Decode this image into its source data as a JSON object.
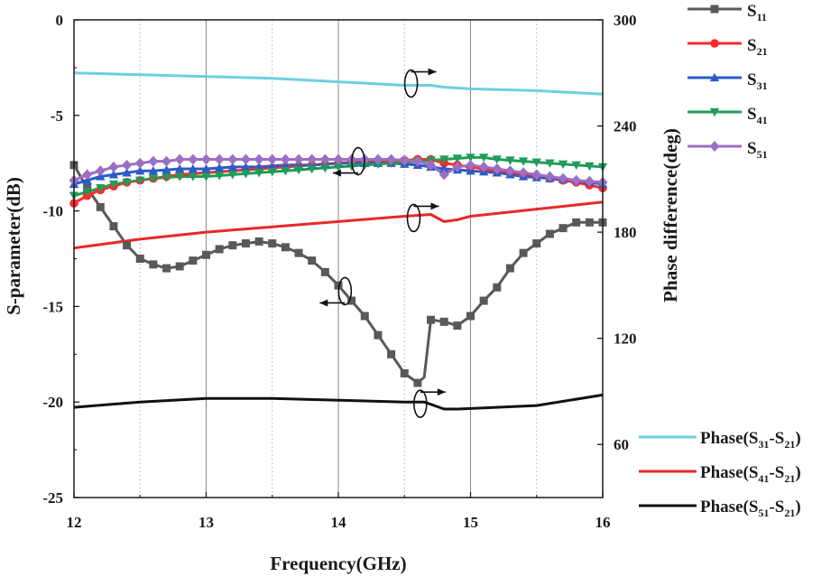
{
  "chart_data": {
    "type": "line",
    "x_axis": {
      "label": "Frequency(GHz)",
      "range": [
        12,
        16
      ],
      "ticks": [
        "12",
        "13",
        "14",
        "15",
        "16"
      ]
    },
    "y_left": {
      "label": "S-parameter(dB)",
      "range": [
        -25,
        0
      ],
      "ticks": [
        "0",
        "-5",
        "-10",
        "-15",
        "-20",
        "-25"
      ]
    },
    "y_right": {
      "label": "Phase difference(deg)",
      "range": [
        30,
        300
      ],
      "ticks": [
        "300",
        "240",
        "180",
        "120",
        "60"
      ]
    },
    "series": [
      {
        "name": "S11",
        "main": "S",
        "sub": "11",
        "axis": "left",
        "color": "#595959",
        "marker": "square",
        "points": [
          [
            12.0,
            -7.6
          ],
          [
            12.1,
            -8.8
          ],
          [
            12.2,
            -9.8
          ],
          [
            12.3,
            -10.8
          ],
          [
            12.4,
            -11.8
          ],
          [
            12.5,
            -12.5
          ],
          [
            12.6,
            -12.8
          ],
          [
            12.7,
            -13.0
          ],
          [
            12.8,
            -12.9
          ],
          [
            12.9,
            -12.6
          ],
          [
            13.0,
            -12.3
          ],
          [
            13.1,
            -12.0
          ],
          [
            13.2,
            -11.8
          ],
          [
            13.3,
            -11.7
          ],
          [
            13.4,
            -11.6
          ],
          [
            13.5,
            -11.7
          ],
          [
            13.6,
            -11.9
          ],
          [
            13.7,
            -12.2
          ],
          [
            13.8,
            -12.6
          ],
          [
            13.9,
            -13.2
          ],
          [
            14.0,
            -13.9
          ],
          [
            14.1,
            -14.7
          ],
          [
            14.2,
            -15.5
          ],
          [
            14.3,
            -16.5
          ],
          [
            14.4,
            -17.5
          ],
          [
            14.5,
            -18.5
          ],
          [
            14.6,
            -19.0
          ],
          [
            14.65,
            -18.7
          ],
          [
            14.7,
            -15.7
          ],
          [
            14.8,
            -15.8
          ],
          [
            14.9,
            -16.0
          ],
          [
            15.0,
            -15.5
          ],
          [
            15.1,
            -14.7
          ],
          [
            15.2,
            -14.0
          ],
          [
            15.3,
            -13.0
          ],
          [
            15.4,
            -12.2
          ],
          [
            15.5,
            -11.7
          ],
          [
            15.6,
            -11.2
          ],
          [
            15.7,
            -10.9
          ],
          [
            15.8,
            -10.6
          ],
          [
            15.9,
            -10.6
          ],
          [
            16.0,
            -10.6
          ]
        ]
      },
      {
        "name": "S21",
        "main": "S",
        "sub": "21",
        "axis": "left",
        "color": "#ff2a2a",
        "marker": "circle",
        "points": [
          [
            12.0,
            -9.6
          ],
          [
            12.1,
            -9.2
          ],
          [
            12.2,
            -8.9
          ],
          [
            12.3,
            -8.7
          ],
          [
            12.4,
            -8.5
          ],
          [
            12.5,
            -8.4
          ],
          [
            12.6,
            -8.3
          ],
          [
            12.7,
            -8.2
          ],
          [
            12.8,
            -8.1
          ],
          [
            13.0,
            -8.0
          ],
          [
            13.2,
            -7.9
          ],
          [
            13.4,
            -7.8
          ],
          [
            13.6,
            -7.7
          ],
          [
            13.8,
            -7.6
          ],
          [
            14.0,
            -7.5
          ],
          [
            14.2,
            -7.4
          ],
          [
            14.4,
            -7.4
          ],
          [
            14.6,
            -7.3
          ],
          [
            14.7,
            -7.3
          ],
          [
            14.8,
            -7.5
          ],
          [
            15.0,
            -7.7
          ],
          [
            15.2,
            -7.9
          ],
          [
            15.4,
            -8.1
          ],
          [
            15.6,
            -8.3
          ],
          [
            15.8,
            -8.5
          ],
          [
            16.0,
            -8.8
          ]
        ]
      },
      {
        "name": "S31",
        "main": "S",
        "sub": "31",
        "axis": "left",
        "color": "#2b5bc8",
        "marker": "triangle-up",
        "points": [
          [
            12.0,
            -8.6
          ],
          [
            12.1,
            -8.4
          ],
          [
            12.2,
            -8.2
          ],
          [
            12.3,
            -8.1
          ],
          [
            12.4,
            -8.0
          ],
          [
            12.5,
            -7.9
          ],
          [
            12.6,
            -7.9
          ],
          [
            12.8,
            -7.8
          ],
          [
            13.0,
            -7.8
          ],
          [
            13.2,
            -7.7
          ],
          [
            13.4,
            -7.7
          ],
          [
            13.6,
            -7.6
          ],
          [
            13.8,
            -7.6
          ],
          [
            14.0,
            -7.5
          ],
          [
            14.2,
            -7.5
          ],
          [
            14.4,
            -7.5
          ],
          [
            14.6,
            -7.6
          ],
          [
            14.8,
            -7.8
          ],
          [
            15.0,
            -7.9
          ],
          [
            15.2,
            -8.0
          ],
          [
            15.4,
            -8.2
          ],
          [
            15.6,
            -8.3
          ],
          [
            15.8,
            -8.4
          ],
          [
            16.0,
            -8.6
          ]
        ]
      },
      {
        "name": "S41",
        "main": "S",
        "sub": "41",
        "axis": "left",
        "color": "#1f9c5a",
        "marker": "triangle-down",
        "points": [
          [
            12.0,
            -9.2
          ],
          [
            12.1,
            -9.0
          ],
          [
            12.2,
            -8.8
          ],
          [
            12.3,
            -8.6
          ],
          [
            12.4,
            -8.5
          ],
          [
            12.5,
            -8.4
          ],
          [
            12.6,
            -8.3
          ],
          [
            12.8,
            -8.2
          ],
          [
            13.0,
            -8.2
          ],
          [
            13.2,
            -8.1
          ],
          [
            13.4,
            -8.0
          ],
          [
            13.6,
            -7.9
          ],
          [
            13.8,
            -7.8
          ],
          [
            14.0,
            -7.7
          ],
          [
            14.2,
            -7.6
          ],
          [
            14.4,
            -7.5
          ],
          [
            14.6,
            -7.4
          ],
          [
            14.8,
            -7.3
          ],
          [
            15.0,
            -7.2
          ],
          [
            15.1,
            -7.2
          ],
          [
            15.2,
            -7.3
          ],
          [
            15.4,
            -7.4
          ],
          [
            15.6,
            -7.5
          ],
          [
            15.8,
            -7.6
          ],
          [
            16.0,
            -7.7
          ]
        ]
      },
      {
        "name": "S51",
        "main": "S",
        "sub": "51",
        "axis": "left",
        "color": "#9b6fc4",
        "marker": "diamond",
        "points": [
          [
            12.0,
            -8.4
          ],
          [
            12.1,
            -8.1
          ],
          [
            12.2,
            -7.9
          ],
          [
            12.3,
            -7.7
          ],
          [
            12.4,
            -7.6
          ],
          [
            12.5,
            -7.5
          ],
          [
            12.6,
            -7.4
          ],
          [
            12.7,
            -7.4
          ],
          [
            12.8,
            -7.3
          ],
          [
            13.0,
            -7.3
          ],
          [
            13.2,
            -7.3
          ],
          [
            13.4,
            -7.3
          ],
          [
            13.6,
            -7.3
          ],
          [
            13.8,
            -7.3
          ],
          [
            14.0,
            -7.3
          ],
          [
            14.2,
            -7.3
          ],
          [
            14.4,
            -7.3
          ],
          [
            14.6,
            -7.4
          ],
          [
            14.7,
            -7.6
          ],
          [
            14.8,
            -8.1
          ],
          [
            14.9,
            -7.7
          ],
          [
            15.0,
            -7.6
          ],
          [
            15.2,
            -7.8
          ],
          [
            15.4,
            -8.0
          ],
          [
            15.6,
            -8.2
          ],
          [
            15.8,
            -8.4
          ],
          [
            16.0,
            -8.5
          ]
        ]
      },
      {
        "name": "Phase(S31-S21)",
        "axis": "right",
        "color": "#6ccfdf",
        "marker": "none",
        "legend_parts": [
          [
            "Phase(S",
            ""
          ],
          [
            "31",
            "sub"
          ],
          [
            "-S",
            ""
          ],
          [
            "21",
            "sub"
          ],
          [
            ")",
            ""
          ]
        ],
        "points": [
          [
            12.0,
            270
          ],
          [
            12.5,
            269
          ],
          [
            13.0,
            268
          ],
          [
            13.5,
            267
          ],
          [
            14.0,
            265
          ],
          [
            14.5,
            263
          ],
          [
            14.7,
            263
          ],
          [
            14.8,
            262
          ],
          [
            15.0,
            261
          ],
          [
            15.5,
            260
          ],
          [
            16.0,
            258
          ]
        ]
      },
      {
        "name": "Phase(S41-S21)",
        "axis": "right",
        "color": "#e8282a",
        "marker": "none",
        "legend_parts": [
          [
            "Phase(S",
            ""
          ],
          [
            "41",
            "sub"
          ],
          [
            "-S",
            ""
          ],
          [
            "21",
            "sub"
          ],
          [
            ")",
            ""
          ]
        ],
        "points": [
          [
            12.0,
            171
          ],
          [
            12.5,
            176
          ],
          [
            13.0,
            180
          ],
          [
            13.5,
            183
          ],
          [
            14.0,
            186
          ],
          [
            14.5,
            189
          ],
          [
            14.7,
            190
          ],
          [
            14.8,
            186
          ],
          [
            14.9,
            187
          ],
          [
            15.0,
            189
          ],
          [
            15.5,
            193
          ],
          [
            16.0,
            197
          ]
        ]
      },
      {
        "name": "Phase(S51-S21)",
        "axis": "right",
        "color": "#111111",
        "marker": "none",
        "legend_parts": [
          [
            "Phase(S",
            ""
          ],
          [
            "51",
            "sub"
          ],
          [
            "-S",
            ""
          ],
          [
            "21",
            "sub"
          ],
          [
            ")",
            ""
          ]
        ],
        "points": [
          [
            12.0,
            81
          ],
          [
            12.5,
            84
          ],
          [
            13.0,
            86
          ],
          [
            13.5,
            86
          ],
          [
            14.0,
            85
          ],
          [
            14.5,
            84
          ],
          [
            14.65,
            84
          ],
          [
            14.8,
            80
          ],
          [
            14.9,
            80
          ],
          [
            15.5,
            82
          ],
          [
            16.0,
            88
          ]
        ]
      }
    ],
    "annotations": [
      {
        "target": "Phase(S31-S21)",
        "x": 14.55,
        "y": 264,
        "axis": "right",
        "arrow": "right"
      },
      {
        "target": "S21-S51 group",
        "x": 14.15,
        "y": -7.4,
        "axis": "left",
        "arrow": "left"
      },
      {
        "target": "Phase(S41-S21)",
        "x": 14.57,
        "y": 188,
        "axis": "right",
        "arrow": "right"
      },
      {
        "target": "S11",
        "x": 14.05,
        "y": -14.2,
        "axis": "left",
        "arrow": "left"
      },
      {
        "target": "Phase(S51-S21)",
        "x": 14.62,
        "y": 83,
        "axis": "right",
        "arrow": "right"
      }
    ]
  }
}
